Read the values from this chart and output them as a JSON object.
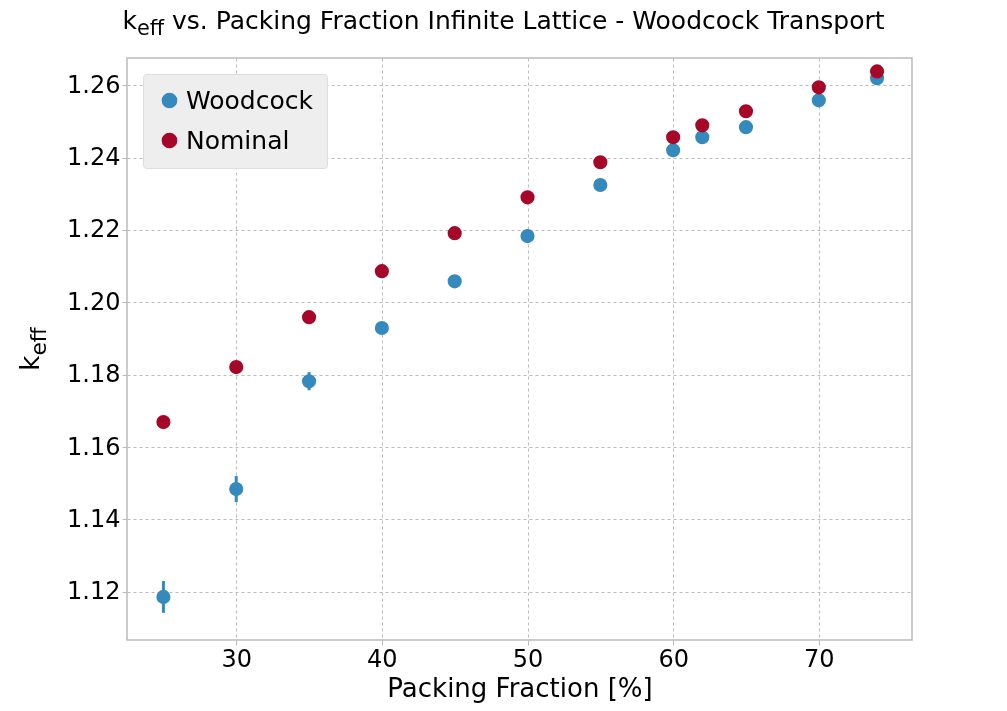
{
  "chart_data": {
    "type": "scatter",
    "title": "k$_{eff}$ vs. Packing Fraction Infinite Lattice - Woodcock Transport",
    "xlabel": "Packing Fraction [%]",
    "ylabel": "k$_{eff}$",
    "x": [
      25,
      30,
      35,
      40,
      45,
      50,
      55,
      60,
      62,
      65,
      70,
      74
    ],
    "series": [
      {
        "name": "Woodcock",
        "color": "#348abd",
        "values": [
          1.1186,
          1.1484,
          1.1782,
          1.1929,
          1.2058,
          1.2183,
          1.2324,
          1.242,
          1.2456,
          1.2484,
          1.2558,
          1.2619
        ],
        "errors": [
          0.0044,
          0.0036,
          0.0025,
          0.0014,
          0.001,
          null,
          null,
          null,
          null,
          null,
          null,
          null
        ]
      },
      {
        "name": "Nominal",
        "color": "#a60628",
        "values": [
          1.1669,
          1.1821,
          1.1959,
          1.2086,
          1.2191,
          1.229,
          1.2387,
          1.2456,
          1.2489,
          1.2528,
          1.2594,
          1.2638
        ]
      }
    ],
    "xlim": [
      22.5,
      76.4
    ],
    "ylim": [
      1.1067,
      1.2675
    ],
    "xticks": [
      30,
      40,
      50,
      60,
      70
    ],
    "yticks": [
      {
        "value": 1.12,
        "label": "1.12"
      },
      {
        "value": 1.14,
        "label": "1.14"
      },
      {
        "value": 1.16,
        "label": "1.16"
      },
      {
        "value": 1.18,
        "label": "1.18"
      },
      {
        "value": 1.2,
        "label": "1.20"
      },
      {
        "value": 1.22,
        "label": "1.22"
      },
      {
        "value": 1.24,
        "label": "1.24"
      },
      {
        "value": 1.26,
        "label": "1.26"
      }
    ],
    "grid": true,
    "legend": "top left",
    "marker": "circle"
  }
}
